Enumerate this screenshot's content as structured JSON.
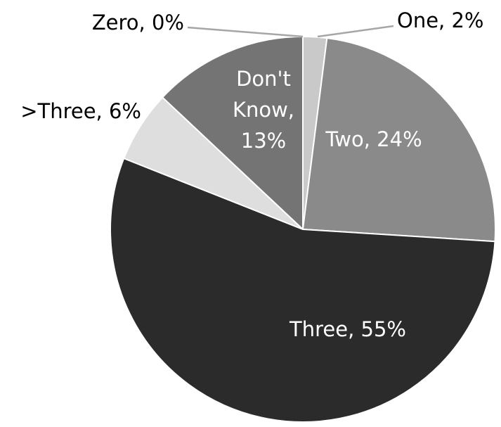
{
  "chart_data": {
    "type": "pie",
    "slices": [
      {
        "name": "Zero",
        "value": 0,
        "label_lines": [
          "Zero, 0%"
        ],
        "color": "#c7c7c7",
        "label_color": "#000000"
      },
      {
        "name": "One",
        "value": 2,
        "label_lines": [
          "One, 2%"
        ],
        "color": "#c9c9c9",
        "label_color": "#000000"
      },
      {
        "name": "Two",
        "value": 24,
        "label_lines": [
          "Two, 24%"
        ],
        "color": "#8a8a8a",
        "label_color": "#ffffff"
      },
      {
        "name": "Three",
        "value": 55,
        "label_lines": [
          "Three, 55%"
        ],
        "color": "#2b2b2b",
        "label_color": "#ffffff"
      },
      {
        "name": ">Three",
        "value": 6,
        "label_lines": [
          ">Three, 6%"
        ],
        "color": "#dedede",
        "label_color": "#000000"
      },
      {
        "name": "Don't Know",
        "value": 13,
        "label_lines": [
          "Don't",
          "Know,",
          "13%"
        ],
        "color": "#747474",
        "label_color": "#ffffff"
      }
    ],
    "start_angle_deg": 0,
    "direction": "clockwise",
    "title": "",
    "legend": "none",
    "colors": {
      "background": "#ffffff",
      "slice_border": "#ffffff",
      "leader_line": "#a6a6a6"
    }
  }
}
